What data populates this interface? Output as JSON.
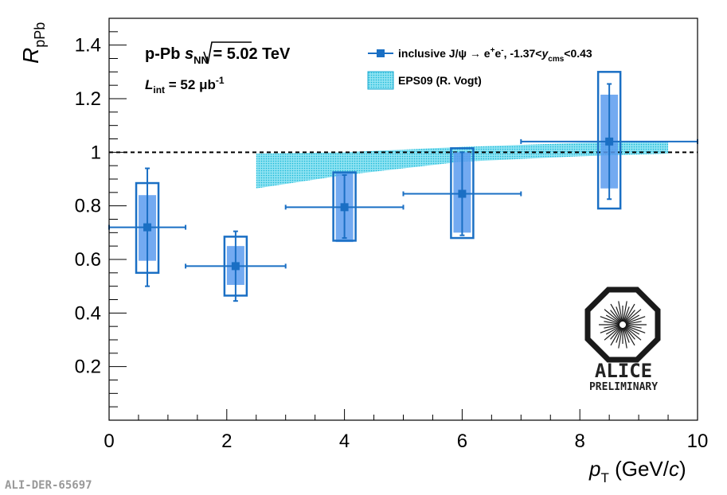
{
  "chart_data": {
    "type": "scatter",
    "ylabel": {
      "main": "R",
      "sub": "pPb"
    },
    "xlabel": {
      "main": "p",
      "sub": "T",
      "unit_pre": " (GeV/",
      "unit_var": "c",
      "unit_post": ")"
    },
    "xlim": [
      0,
      10
    ],
    "ylim": [
      0,
      1.5
    ],
    "x_ticks": [
      "0",
      "2",
      "4",
      "6",
      "8",
      "10"
    ],
    "y_ticks": [
      "0.2",
      "0.4",
      "0.6",
      "0.8",
      "1",
      "1.2",
      "1.4"
    ],
    "reference_line": {
      "y": 1,
      "style": "dashed"
    },
    "annotations": {
      "system": {
        "prefix": "p-Pb ",
        "var": "s",
        "sub": "NN",
        "suffix": " = 5.02 TeV"
      },
      "luminosity": {
        "var": "L",
        "sub": "int",
        "text": " = 52 μb",
        "sup": "-1"
      }
    },
    "legend": {
      "position": "top-right",
      "entries": [
        {
          "label_pre": "inclusive J/ψ → e",
          "sup1": "+",
          "mid": "e",
          "sup2": "-",
          "mid2": ", -1.37<",
          "var": "y",
          "sub": "cms",
          "post": "<0.43"
        },
        {
          "label": "EPS09 (R. Vogt)"
        }
      ]
    },
    "series": [
      {
        "name": "inclusive J/ψ",
        "color": "#1a6fc4",
        "points": [
          {
            "x": 0.65,
            "y": 0.72,
            "xerr": [
              0,
              1.3
            ],
            "stat": [
              0.5,
              0.94
            ],
            "sys": [
              0.55,
              0.885
            ],
            "corr": [
              0.595,
              0.84
            ]
          },
          {
            "x": 2.15,
            "y": 0.575,
            "xerr": [
              1.3,
              3.0
            ],
            "stat": [
              0.445,
              0.705
            ],
            "sys": [
              0.465,
              0.685
            ],
            "corr": [
              0.505,
              0.65
            ]
          },
          {
            "x": 4.0,
            "y": 0.795,
            "xerr": [
              3.0,
              5.0
            ],
            "stat": [
              0.68,
              0.915
            ],
            "sys": [
              0.67,
              0.925
            ],
            "corr": [
              0.665,
              0.925
            ]
          },
          {
            "x": 6.0,
            "y": 0.845,
            "xerr": [
              5.0,
              7.0
            ],
            "stat": [
              0.69,
              1.0
            ],
            "sys": [
              0.68,
              1.015
            ],
            "corr": [
              0.7,
              1.0
            ]
          },
          {
            "x": 8.5,
            "y": 1.04,
            "xerr": [
              7.0,
              10.0
            ],
            "stat": [
              0.825,
              1.255
            ],
            "sys": [
              0.79,
              1.3
            ],
            "corr": [
              0.865,
              1.215
            ]
          }
        ]
      }
    ],
    "band": {
      "name": "EPS09 (R. Vogt)",
      "color": "#22c4e0",
      "upper": [
        [
          2.5,
          0.995
        ],
        [
          4,
          1.0
        ],
        [
          6,
          1.02
        ],
        [
          8,
          1.035
        ],
        [
          9.5,
          1.04
        ]
      ],
      "lower": [
        [
          9.5,
          0.995
        ],
        [
          8,
          0.985
        ],
        [
          6,
          0.965
        ],
        [
          4,
          0.915
        ],
        [
          2.5,
          0.865
        ]
      ]
    },
    "logo": {
      "name": "ALICE",
      "subtitle": "PRELIMINARY"
    },
    "figure_id": "ALI-DER-65697"
  }
}
